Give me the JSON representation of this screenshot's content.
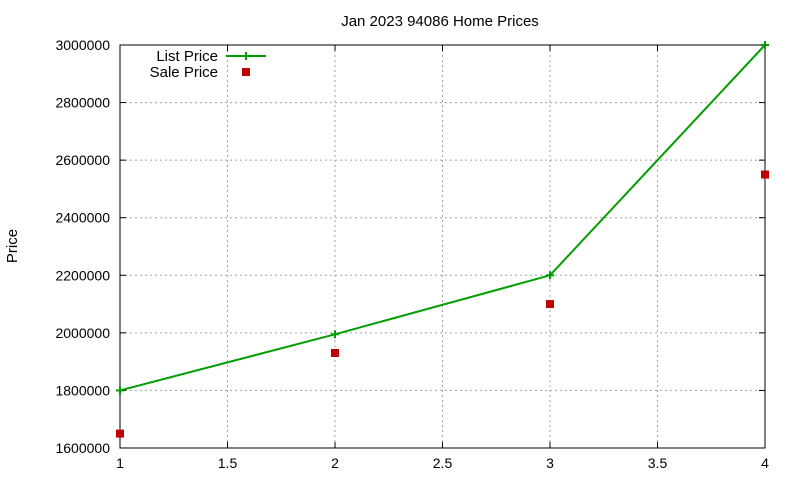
{
  "chart_data": {
    "type": "line",
    "title": "Jan 2023 94086 Home Prices",
    "xlabel": "",
    "ylabel": "Price",
    "xlim": [
      1,
      4
    ],
    "ylim": [
      1600000,
      3000000
    ],
    "x_ticks": [
      "1",
      "1.5",
      "2",
      "2.5",
      "3",
      "3.5",
      "4"
    ],
    "y_ticks": [
      "1600000",
      "1800000",
      "2000000",
      "2200000",
      "2400000",
      "2600000",
      "2800000",
      "3000000"
    ],
    "grid": true,
    "legend_position": "top-left",
    "series": [
      {
        "name": "List Price",
        "style": "line+cross",
        "color": "#009e00",
        "x": [
          1,
          2,
          3,
          4
        ],
        "y": [
          1800000,
          1995000,
          2200000,
          3000000
        ]
      },
      {
        "name": "Sale Price",
        "style": "square-points",
        "color": "#c00000",
        "x": [
          1,
          2,
          3,
          4
        ],
        "y": [
          1650000,
          1930000,
          2100000,
          2550000
        ]
      }
    ]
  }
}
